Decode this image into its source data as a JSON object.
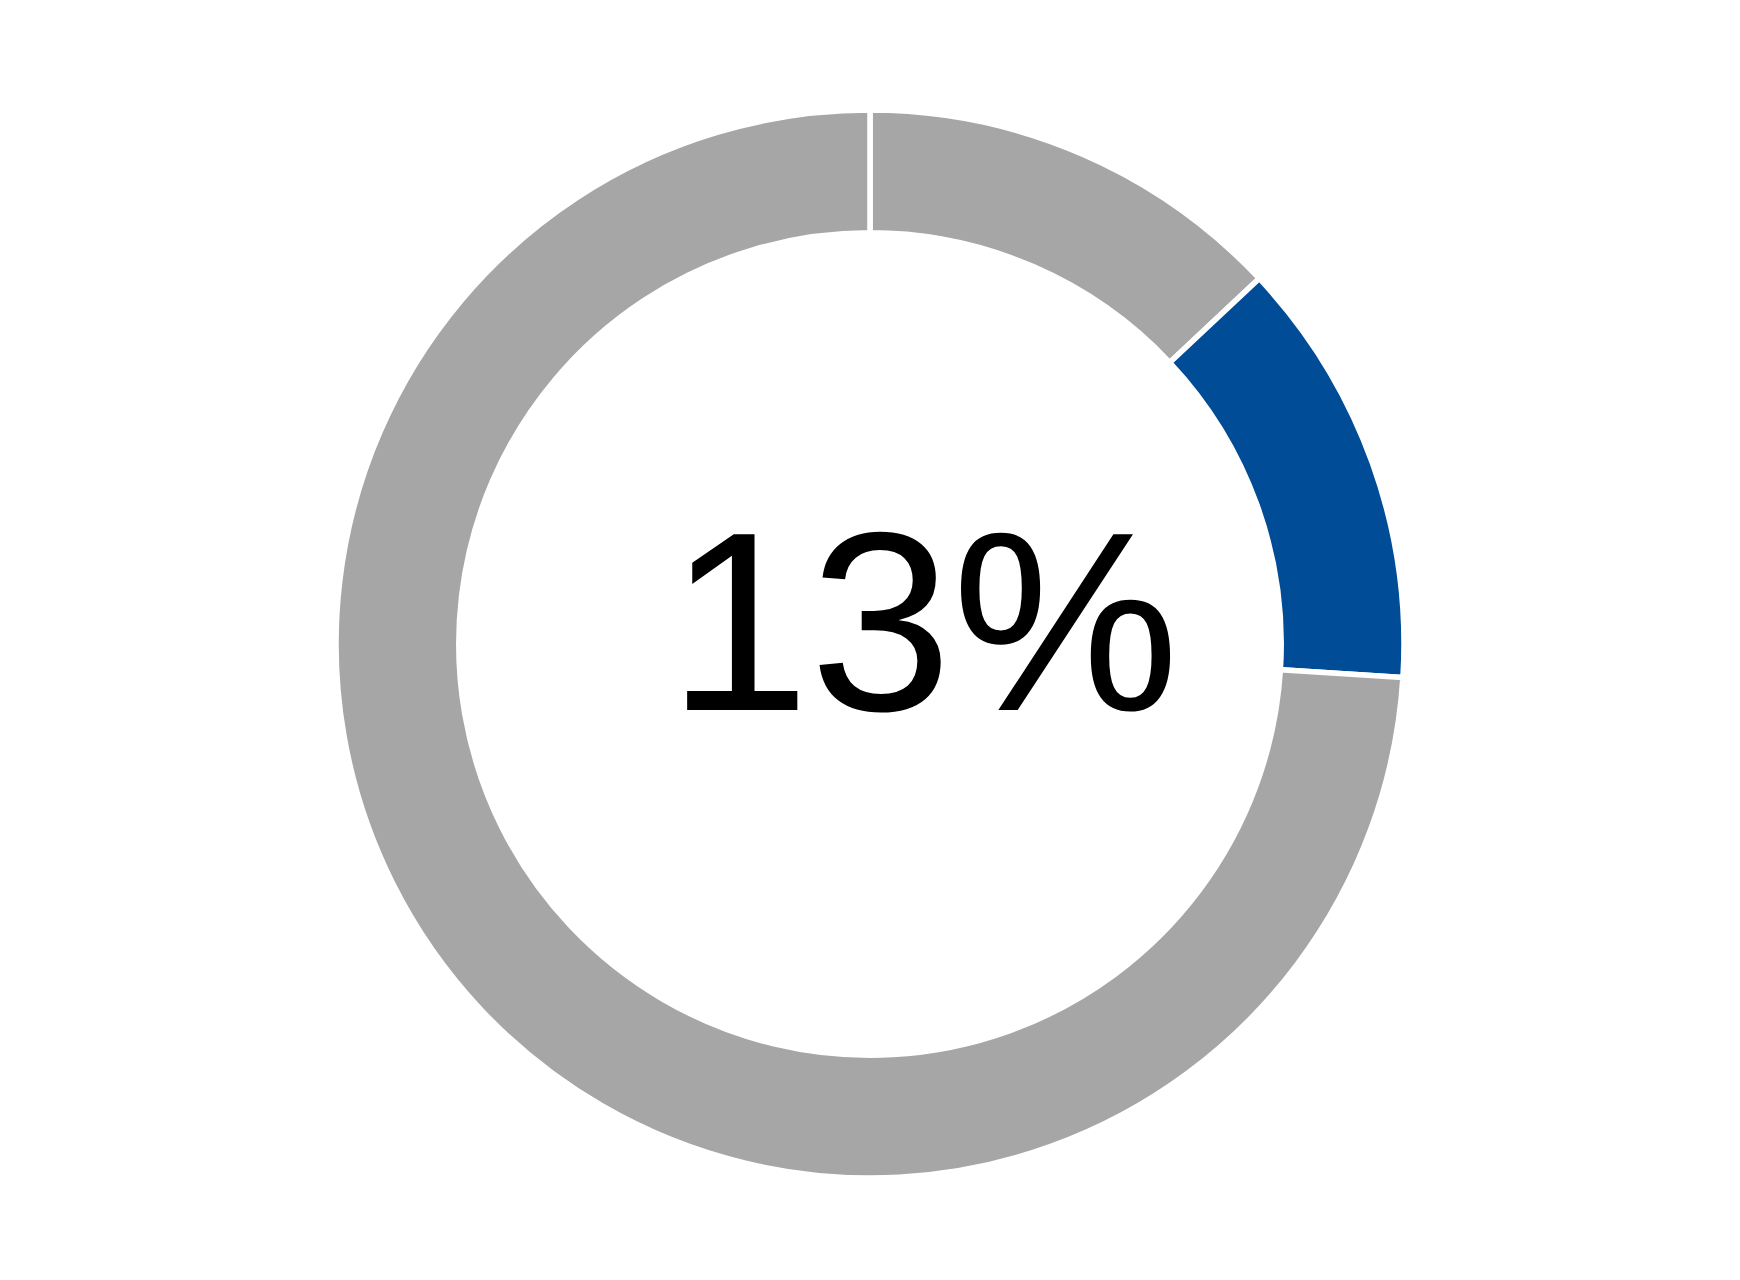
{
  "chart_data": {
    "type": "donut",
    "categories": [
      null,
      null,
      null
    ],
    "values": [
      13,
      13,
      74
    ],
    "colors": [
      "#a6a6a6",
      "#004c97",
      "#a6a6a6"
    ],
    "annotations": [
      "13%"
    ]
  }
}
